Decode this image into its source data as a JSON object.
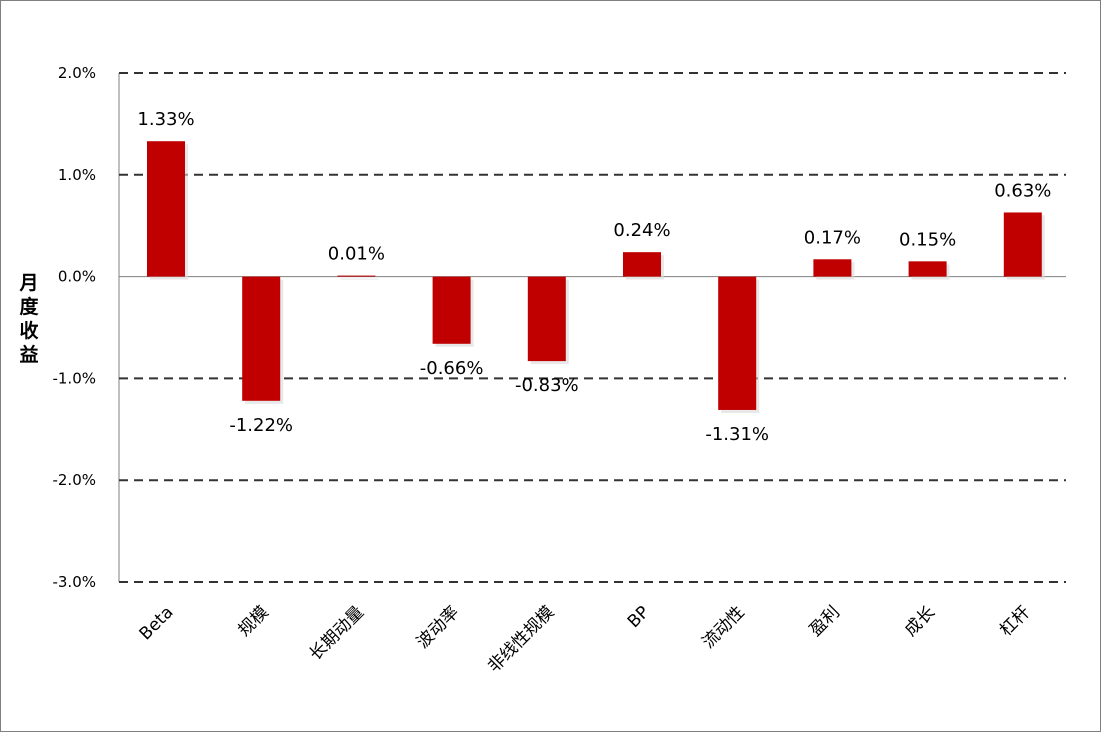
{
  "chart_data": {
    "type": "bar",
    "title": "",
    "xlabel": "",
    "ylabel": "月度收益",
    "ylim": [
      -3.0,
      2.0
    ],
    "yticks": [
      2.0,
      1.0,
      0.0,
      -1.0,
      -2.0,
      -3.0
    ],
    "ytick_labels": [
      "2.0%",
      "1.0%",
      "0.0%",
      "-1.0%",
      "-2.0%",
      "-3.0%"
    ],
    "categories": [
      "Beta",
      "规模",
      "长期动量",
      "波动率",
      "非线性规模",
      "BP",
      "流动性",
      "盈利",
      "成长",
      "杠杆"
    ],
    "values": [
      1.33,
      -1.22,
      0.01,
      -0.66,
      -0.83,
      0.24,
      -1.31,
      0.17,
      0.15,
      0.63
    ],
    "data_labels": [
      "1.33%",
      "-1.22%",
      "0.01%",
      "-0.66%",
      "-0.83%",
      "0.24%",
      "-1.31%",
      "0.17%",
      "0.15%",
      "0.63%"
    ],
    "grid": "dashed horizontal",
    "legend": "none",
    "bar_color": "#c00000"
  }
}
